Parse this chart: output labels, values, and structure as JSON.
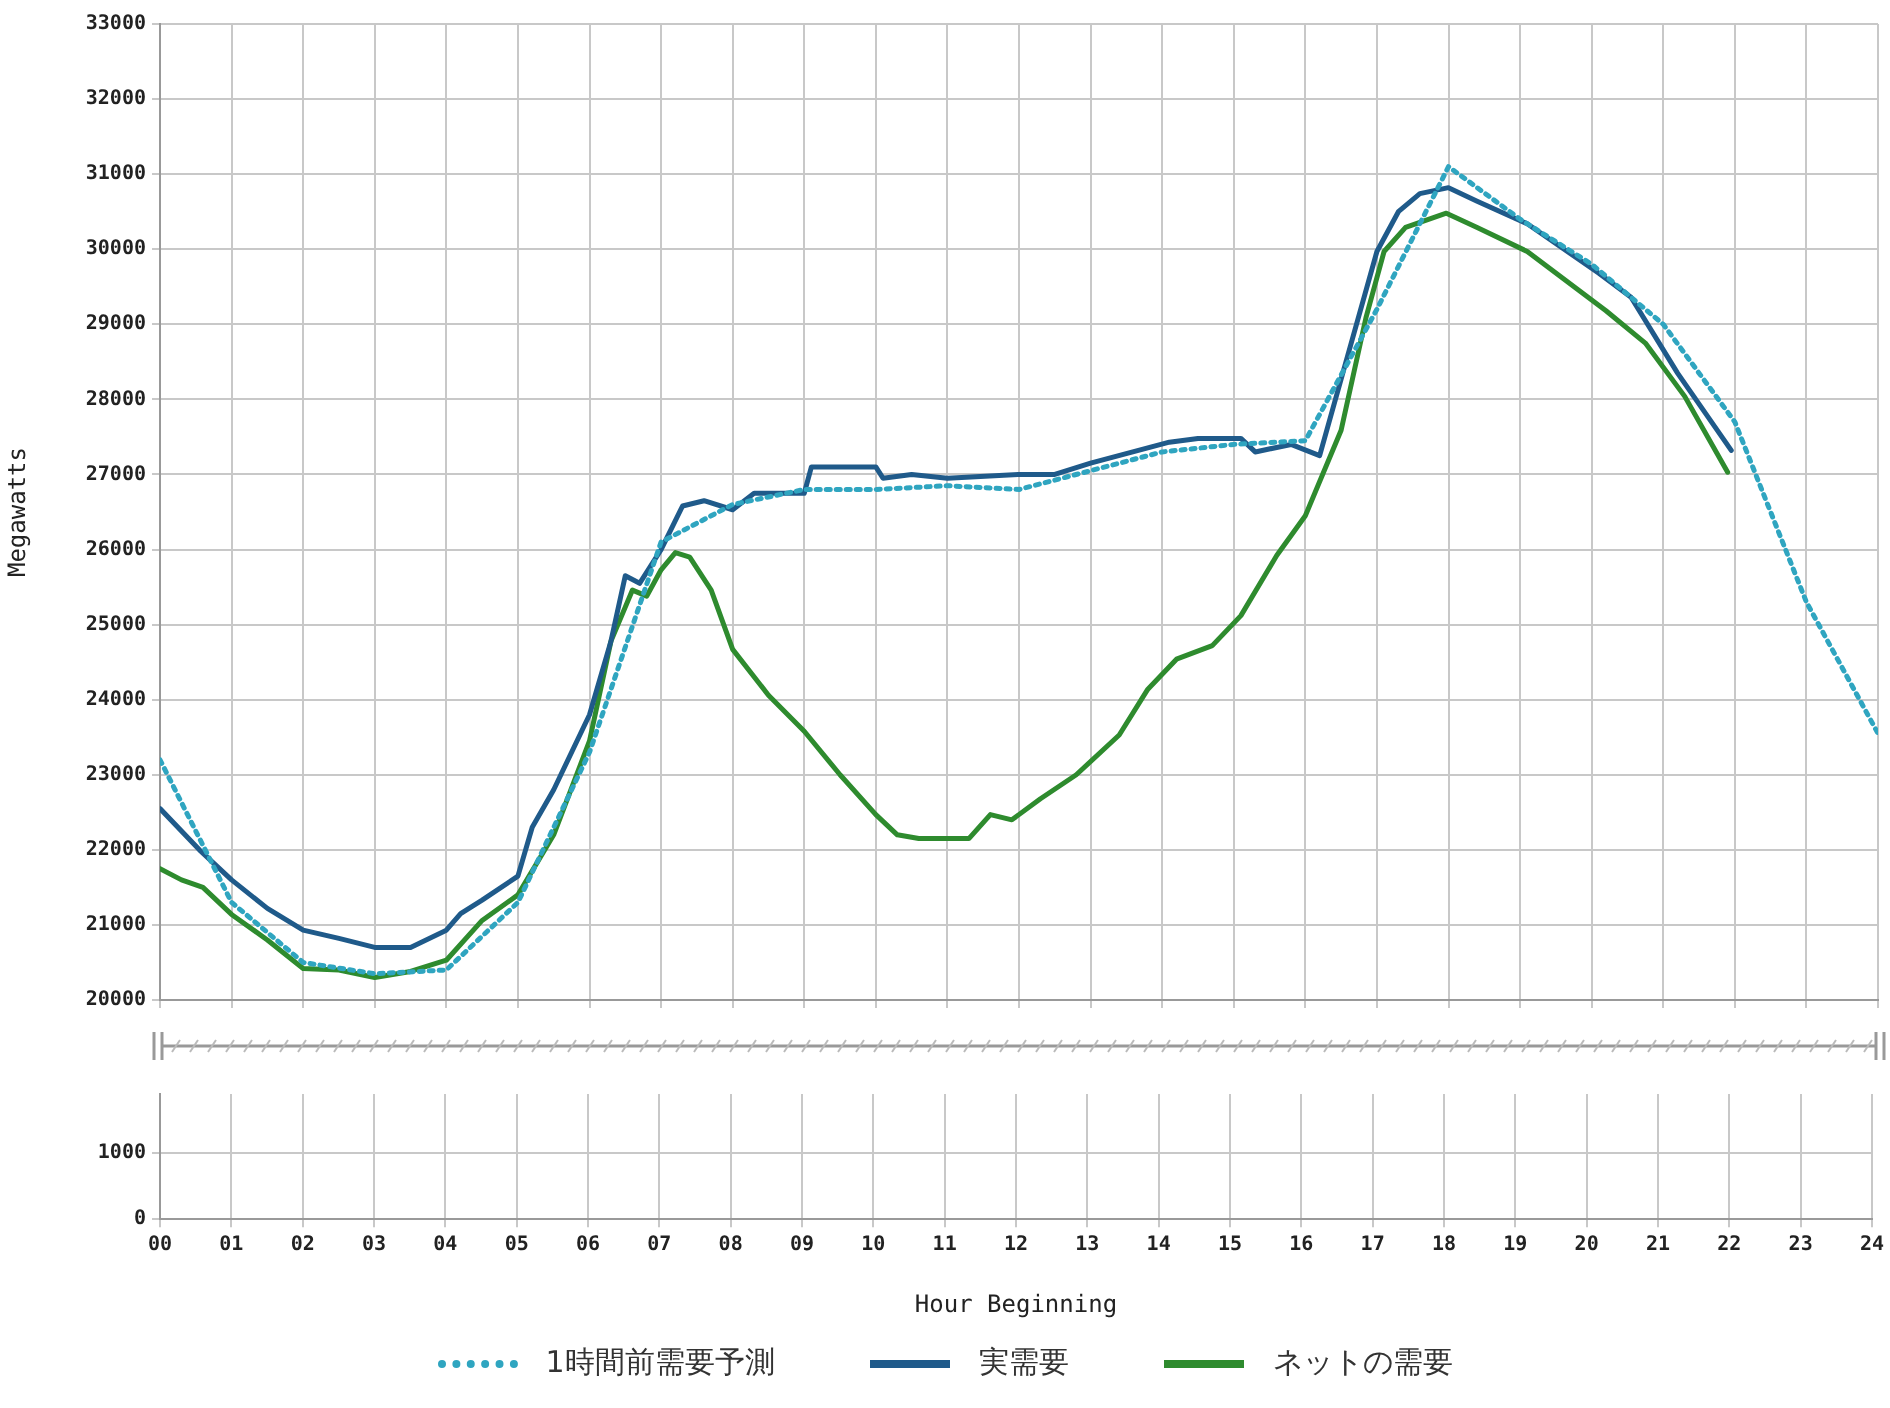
{
  "chart_data": [
    {
      "type": "line",
      "ylabel": "Megawatts",
      "xlim": [
        0,
        24
      ],
      "ylim": [
        20000,
        33000
      ],
      "xticks": [
        {
          "value": 0,
          "label": null
        },
        {
          "value": 1,
          "label": null
        },
        {
          "value": 2,
          "label": null
        },
        {
          "value": 3,
          "label": null
        },
        {
          "value": 4,
          "label": null
        },
        {
          "value": 5,
          "label": null
        },
        {
          "value": 6,
          "label": null
        },
        {
          "value": 7,
          "label": null
        },
        {
          "value": 8,
          "label": null
        },
        {
          "value": 9,
          "label": null
        },
        {
          "value": 10,
          "label": null
        },
        {
          "value": 11,
          "label": null
        },
        {
          "value": 12,
          "label": null
        },
        {
          "value": 13,
          "label": null
        },
        {
          "value": 14,
          "label": null
        },
        {
          "value": 15,
          "label": null
        },
        {
          "value": 16,
          "label": null
        },
        {
          "value": 17,
          "label": null
        },
        {
          "value": 18,
          "label": null
        },
        {
          "value": 19,
          "label": null
        },
        {
          "value": 20,
          "label": null
        },
        {
          "value": 21,
          "label": null
        },
        {
          "value": 22,
          "label": null
        },
        {
          "value": 23,
          "label": null
        },
        {
          "value": 24,
          "label": null
        }
      ],
      "yticks": [
        20000,
        21000,
        22000,
        23000,
        24000,
        25000,
        26000,
        27000,
        28000,
        29000,
        30000,
        31000,
        32000,
        33000
      ],
      "tick_labels": "y",
      "grid": true,
      "legend": "bottom",
      "series": [
        {
          "name": "1時間前需要予測",
          "color": "#2fa5c0",
          "line_style": "dotted",
          "x": [
            0,
            1,
            2,
            3,
            4,
            5,
            6,
            7,
            8,
            9,
            10,
            11,
            12,
            13,
            14,
            15,
            16,
            17,
            18,
            19,
            20,
            21,
            22,
            23,
            24
          ],
          "values": [
            23200,
            21300,
            20500,
            20350,
            20400,
            21300,
            23300,
            26100,
            26600,
            26800,
            26800,
            26850,
            26800,
            27050,
            27300,
            27400,
            27450,
            29200,
            31100,
            30400,
            29800,
            29000,
            27700,
            25300,
            23550
          ]
        },
        {
          "name": "実需要",
          "color": "#1f5a8a",
          "line_style": "solid",
          "x": [
            0,
            0.55,
            1,
            1.5,
            2,
            2.5,
            3,
            3.5,
            4,
            4.2,
            4.5,
            5,
            5.2,
            5.5,
            6,
            6.3,
            6.5,
            6.7,
            7,
            7.3,
            7.6,
            8,
            8.3,
            9,
            9.1,
            10,
            10.1,
            10.5,
            11,
            12,
            12.5,
            13,
            14.1,
            14.5,
            15.1,
            15.3,
            15.8,
            16.2,
            17,
            17.3,
            17.6,
            18,
            18.4,
            19.1,
            20.1,
            20.55,
            21.2,
            21.95
          ],
          "values": [
            22550,
            22000,
            21600,
            21220,
            20930,
            20820,
            20700,
            20700,
            20930,
            21150,
            21330,
            21650,
            22300,
            22800,
            23800,
            24780,
            25650,
            25550,
            26000,
            26580,
            26650,
            26530,
            26750,
            26750,
            27100,
            27100,
            26950,
            27000,
            26950,
            27000,
            27000,
            27150,
            27430,
            27480,
            27480,
            27300,
            27400,
            27250,
            29970,
            30500,
            30740,
            30820,
            30640,
            30340,
            29680,
            29360,
            28350,
            27320
          ]
        },
        {
          "name": "ネットの需要",
          "color": "#2e8b2e",
          "line_style": "solid",
          "x": [
            0,
            0.3,
            0.6,
            1,
            1.5,
            2,
            2.5,
            3,
            3.5,
            4,
            4.5,
            5,
            5.5,
            6,
            6.3,
            6.6,
            6.8,
            7,
            7.2,
            7.4,
            7.7,
            8,
            8.5,
            9,
            9.5,
            10,
            10.3,
            10.6,
            11.3,
            11.6,
            11.9,
            12.3,
            12.8,
            13.4,
            13.8,
            14.2,
            14.7,
            15.1,
            15.6,
            16,
            16.5,
            16.85,
            17.1,
            17.4,
            17.97,
            18.4,
            19.1,
            20.2,
            20.75,
            21.3,
            21.9
          ],
          "values": [
            21750,
            21600,
            21500,
            21140,
            20800,
            20420,
            20400,
            20300,
            20380,
            20530,
            21060,
            21400,
            22200,
            23450,
            24780,
            25460,
            25380,
            25730,
            25960,
            25900,
            25460,
            24670,
            24060,
            23580,
            23000,
            22470,
            22200,
            22150,
            22150,
            22470,
            22400,
            22680,
            23000,
            23530,
            24140,
            24540,
            24720,
            25120,
            25920,
            26450,
            27590,
            29100,
            29970,
            30290,
            30480,
            30290,
            29970,
            29180,
            28750,
            28040,
            27030
          ]
        }
      ]
    },
    {
      "type": "line",
      "xlabel": "Hour Beginning",
      "xlim": [
        0,
        24
      ],
      "ylim": [
        0,
        1900
      ],
      "xticks": [
        {
          "value": 0,
          "label": "00"
        },
        {
          "value": 1,
          "label": "01"
        },
        {
          "value": 2,
          "label": "02"
        },
        {
          "value": 3,
          "label": "03"
        },
        {
          "value": 4,
          "label": "04"
        },
        {
          "value": 5,
          "label": "05"
        },
        {
          "value": 6,
          "label": "06"
        },
        {
          "value": 7,
          "label": "07"
        },
        {
          "value": 8,
          "label": "08"
        },
        {
          "value": 9,
          "label": "09"
        },
        {
          "value": 10,
          "label": "10"
        },
        {
          "value": 11,
          "label": "11"
        },
        {
          "value": 12,
          "label": "12"
        },
        {
          "value": 13,
          "label": "13"
        },
        {
          "value": 14,
          "label": "14"
        },
        {
          "value": 15,
          "label": "15"
        },
        {
          "value": 16,
          "label": "16"
        },
        {
          "value": 17,
          "label": "17"
        },
        {
          "value": 18,
          "label": "18"
        },
        {
          "value": 19,
          "label": "19"
        },
        {
          "value": 20,
          "label": "20"
        },
        {
          "value": 21,
          "label": "21"
        },
        {
          "value": 22,
          "label": "22"
        },
        {
          "value": 23,
          "label": "23"
        },
        {
          "value": 24,
          "label": "24"
        }
      ],
      "yticks": [
        0,
        1000
      ],
      "grid": true
    }
  ]
}
